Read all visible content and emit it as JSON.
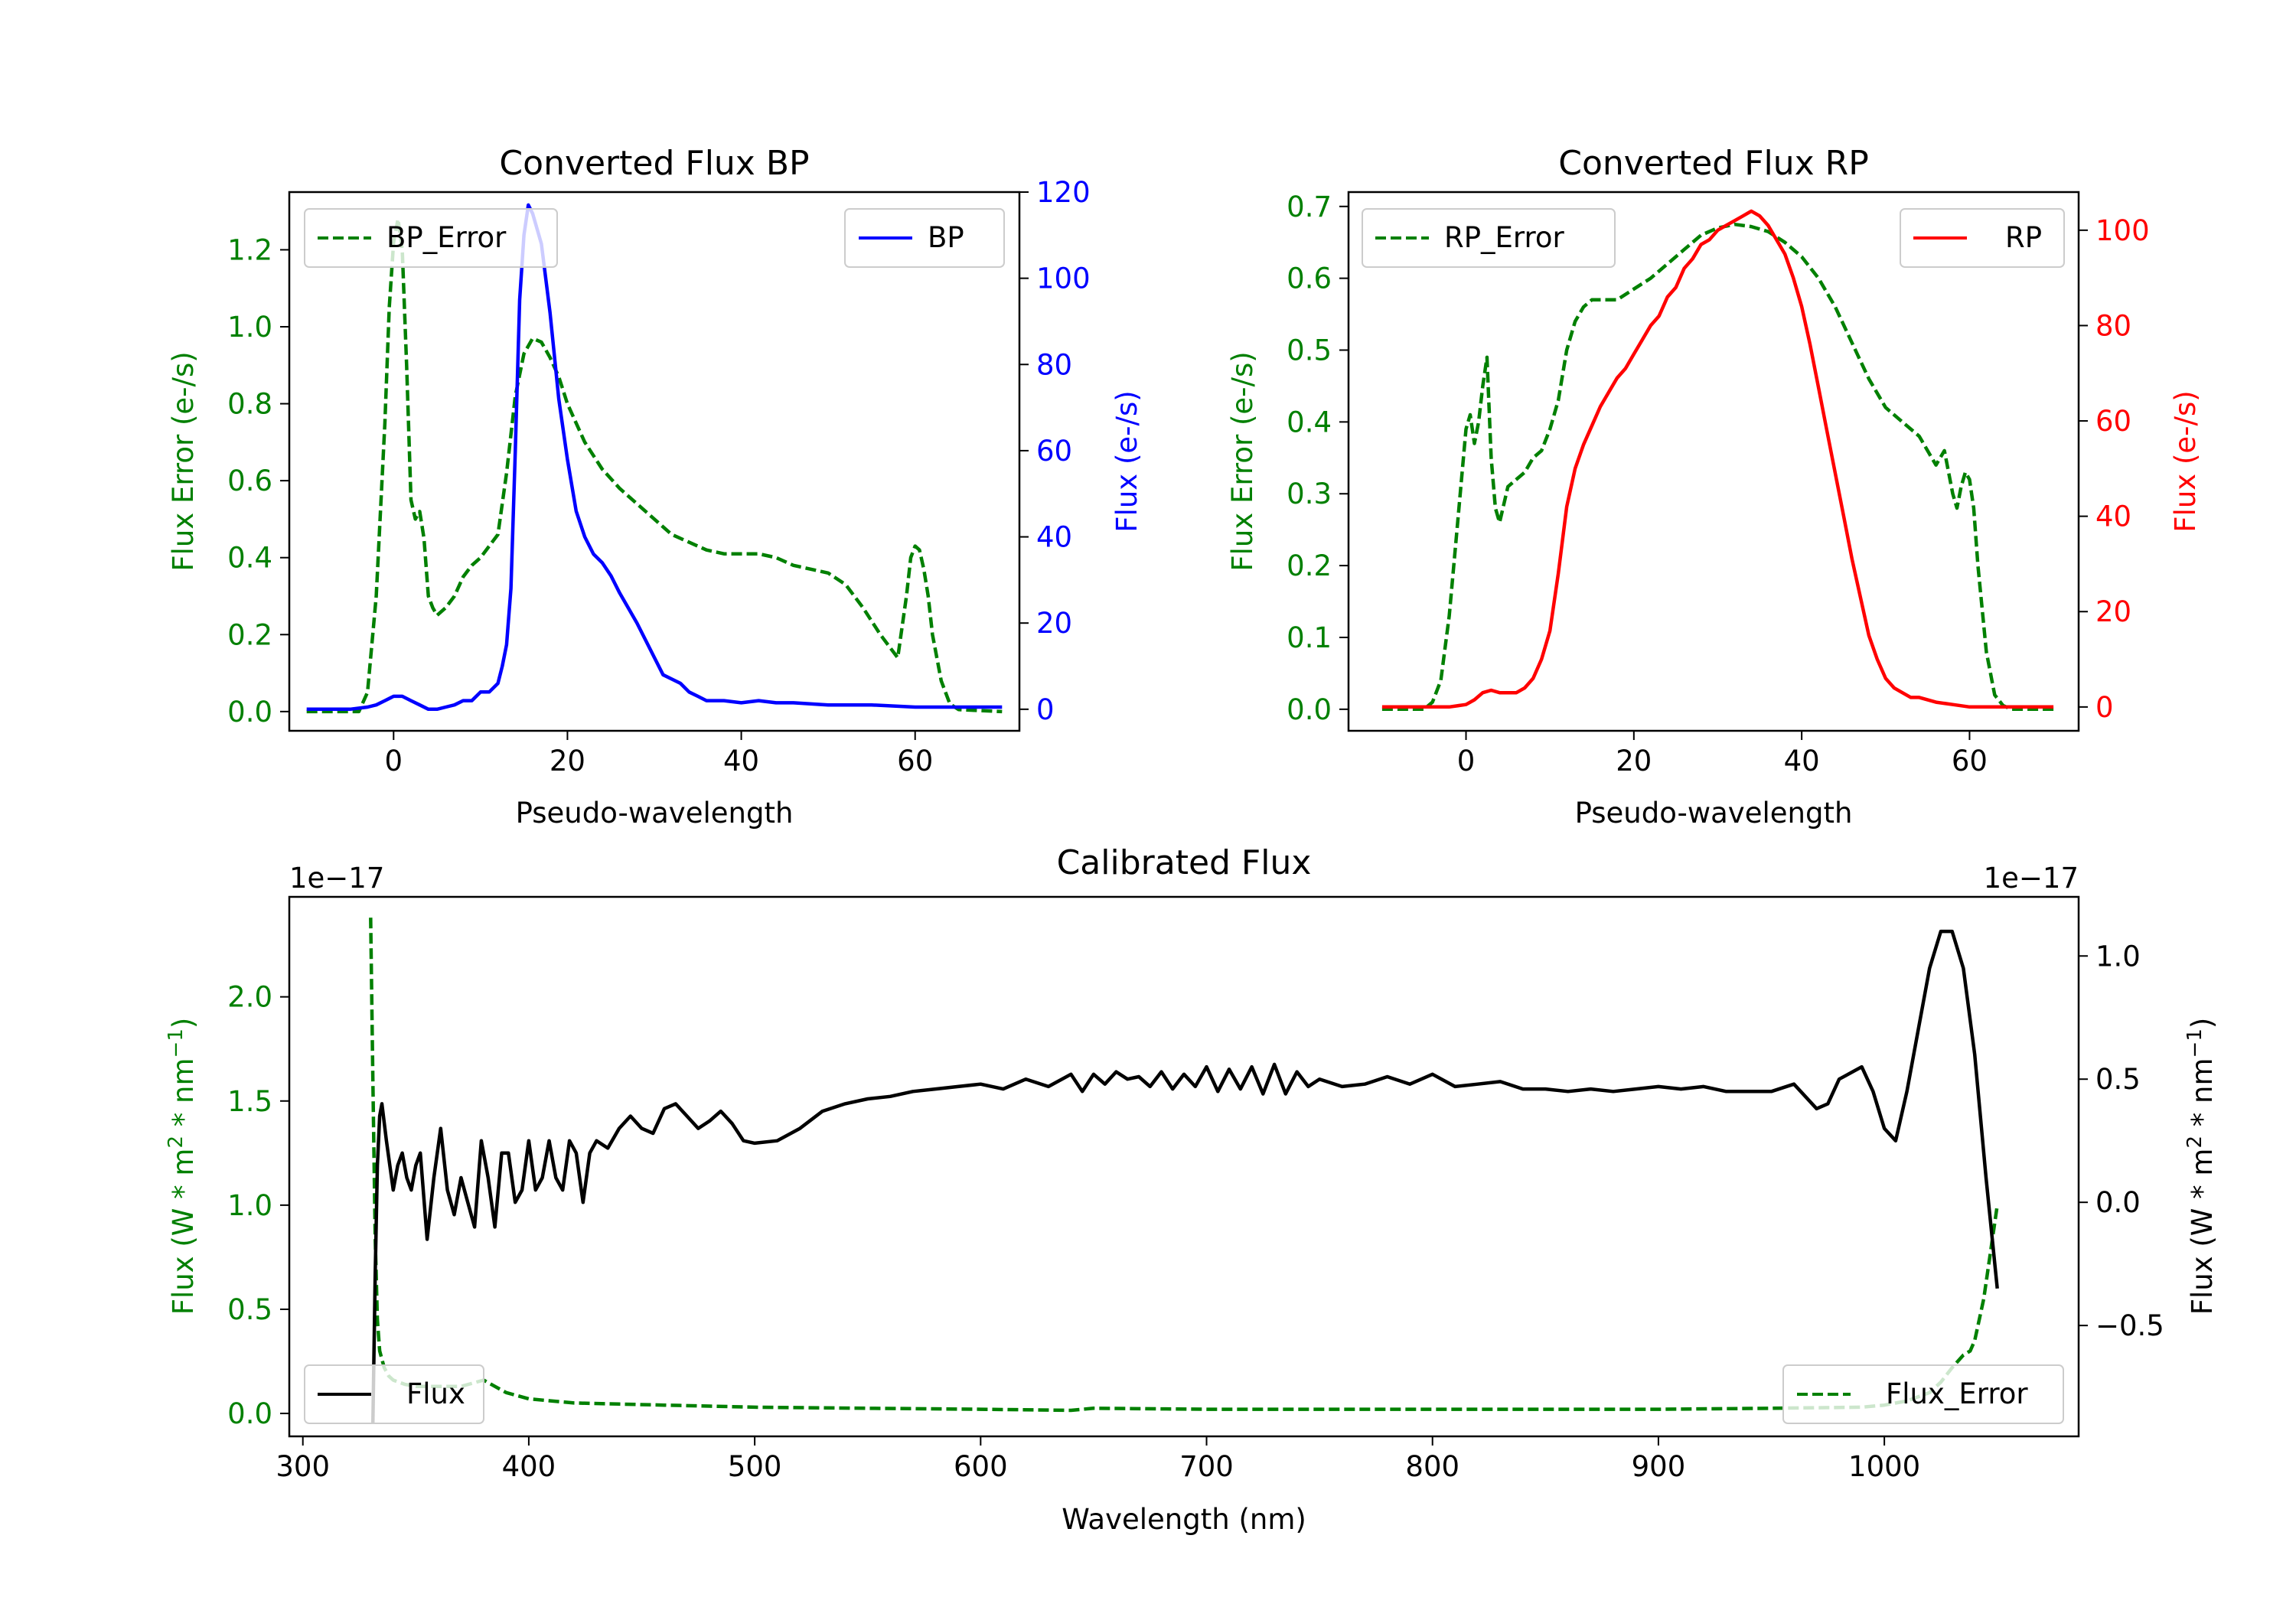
{
  "chart_data": [
    {
      "id": "bp",
      "type": "line",
      "title": "Converted Flux BP",
      "xlabel": "Pseudo-wavelength",
      "ylabel_left": "Flux Error (e-/s)",
      "ylabel_right": "Flux (e-/s)",
      "xlim": [
        -12,
        72
      ],
      "ylim_left": [
        -0.05,
        1.35
      ],
      "ylim_right": [
        -5,
        120
      ],
      "xticks": [
        0,
        20,
        40,
        60
      ],
      "xtick_labels": [
        "0",
        "20",
        "40",
        "60"
      ],
      "yticks_left": [
        0,
        0.2,
        0.4,
        0.6,
        0.8,
        1.0,
        1.2
      ],
      "ytick_labels_left": [
        "0.0",
        "0.2",
        "0.4",
        "0.6",
        "0.8",
        "1.0",
        "1.2"
      ],
      "yticks_right": [
        0,
        20,
        40,
        60,
        80,
        100,
        120
      ],
      "ytick_labels_right": [
        "0",
        "20",
        "40",
        "60",
        "80",
        "100",
        "120"
      ],
      "legend_left": "BP_Error",
      "legend_right": "BP",
      "colors": {
        "left": "#008000",
        "right": "#0000ff"
      },
      "series": [
        {
          "name": "BP_Error",
          "axis": "left",
          "style": "dashed",
          "color": "#008000",
          "x": [
            -10,
            -4,
            -3,
            -2,
            -1,
            -0.5,
            0,
            0.5,
            1,
            1.5,
            2,
            2.5,
            3,
            3.5,
            4,
            4.5,
            5,
            6,
            7,
            8,
            9,
            10,
            11,
            12,
            13,
            14,
            15,
            16,
            17,
            18,
            19,
            20,
            22,
            24,
            26,
            28,
            30,
            32,
            34,
            36,
            38,
            40,
            42,
            44,
            46,
            48,
            50,
            52,
            54,
            56,
            57,
            58,
            59,
            59.5,
            60,
            60.5,
            61,
            61.5,
            62,
            63,
            64,
            65,
            70
          ],
          "values": [
            0,
            0,
            0.05,
            0.3,
            0.75,
            1.05,
            1.22,
            1.28,
            1.2,
            0.9,
            0.55,
            0.5,
            0.52,
            0.45,
            0.3,
            0.27,
            0.25,
            0.27,
            0.3,
            0.35,
            0.38,
            0.4,
            0.43,
            0.46,
            0.62,
            0.82,
            0.93,
            0.97,
            0.96,
            0.92,
            0.87,
            0.8,
            0.7,
            0.63,
            0.58,
            0.54,
            0.5,
            0.46,
            0.44,
            0.42,
            0.41,
            0.41,
            0.41,
            0.4,
            0.38,
            0.37,
            0.36,
            0.33,
            0.27,
            0.2,
            0.17,
            0.14,
            0.3,
            0.4,
            0.43,
            0.42,
            0.37,
            0.3,
            0.2,
            0.08,
            0.02,
            0.005,
            0
          ]
        },
        {
          "name": "BP",
          "axis": "right",
          "style": "solid",
          "color": "#0000ff",
          "x": [
            -10,
            -5,
            -3,
            -2,
            -1,
            0,
            1,
            2,
            3,
            4,
            5,
            6,
            7,
            8,
            9,
            10,
            11,
            12,
            12.5,
            13,
            13.5,
            14,
            14.5,
            15,
            15.5,
            16,
            17,
            18,
            19,
            20,
            21,
            22,
            23,
            24,
            25,
            26,
            28,
            30,
            31,
            32,
            33,
            34,
            35,
            36,
            38,
            40,
            42,
            44,
            46,
            50,
            55,
            60,
            65,
            70
          ],
          "values": [
            0,
            0,
            0.5,
            1,
            2,
            3,
            3,
            2,
            1,
            0,
            0,
            0.5,
            1,
            2,
            2,
            4,
            4,
            6,
            10,
            15,
            28,
            60,
            95,
            110,
            117,
            115,
            108,
            92,
            72,
            58,
            46,
            40,
            36,
            34,
            31,
            27,
            20,
            12,
            8,
            7,
            6,
            4,
            3,
            2,
            2,
            1.5,
            2,
            1.5,
            1.5,
            1,
            1,
            0.5,
            0.5,
            0.5
          ]
        }
      ]
    },
    {
      "id": "rp",
      "type": "line",
      "title": "Converted Flux RP",
      "xlabel": "Pseudo-wavelength",
      "ylabel_left": "Flux Error (e-/s)",
      "ylabel_right": "Flux (e-/s)",
      "xlim": [
        -14,
        73
      ],
      "ylim_left": [
        -0.03,
        0.72
      ],
      "ylim_right": [
        -5,
        108
      ],
      "xticks": [
        0,
        20,
        40,
        60
      ],
      "xtick_labels": [
        "0",
        "20",
        "40",
        "60"
      ],
      "yticks_left": [
        0,
        0.1,
        0.2,
        0.3,
        0.4,
        0.5,
        0.6,
        0.7
      ],
      "ytick_labels_left": [
        "0.0",
        "0.1",
        "0.2",
        "0.3",
        "0.4",
        "0.5",
        "0.6",
        "0.7"
      ],
      "yticks_right": [
        0,
        20,
        40,
        60,
        80,
        100
      ],
      "ytick_labels_right": [
        "0",
        "20",
        "40",
        "60",
        "80",
        "100"
      ],
      "legend_left": "RP_Error",
      "legend_right": "RP",
      "colors": {
        "left": "#008000",
        "right": "#ff0000"
      },
      "series": [
        {
          "name": "RP_Error",
          "axis": "left",
          "style": "dashed",
          "color": "#008000",
          "x": [
            -10,
            -5,
            -4,
            -3,
            -2,
            -1,
            0,
            0.5,
            1,
            1.5,
            2,
            2.5,
            3,
            3.5,
            4,
            5,
            6,
            7,
            8,
            9,
            10,
            11,
            12,
            13,
            14,
            15,
            16,
            18,
            20,
            22,
            24,
            26,
            28,
            30,
            32,
            34,
            36,
            38,
            40,
            42,
            44,
            46,
            48,
            50,
            52,
            54,
            55,
            56,
            57,
            58,
            58.5,
            59,
            59.5,
            60,
            60.5,
            61,
            62,
            63,
            64,
            65,
            70
          ],
          "values": [
            0,
            0,
            0.01,
            0.04,
            0.13,
            0.26,
            0.39,
            0.41,
            0.37,
            0.4,
            0.45,
            0.49,
            0.35,
            0.28,
            0.26,
            0.31,
            0.32,
            0.33,
            0.35,
            0.36,
            0.39,
            0.43,
            0.5,
            0.54,
            0.56,
            0.57,
            0.57,
            0.57,
            0.585,
            0.6,
            0.62,
            0.64,
            0.66,
            0.67,
            0.675,
            0.672,
            0.665,
            0.65,
            0.63,
            0.6,
            0.56,
            0.51,
            0.46,
            0.42,
            0.4,
            0.38,
            0.36,
            0.34,
            0.36,
            0.3,
            0.28,
            0.31,
            0.33,
            0.32,
            0.28,
            0.2,
            0.08,
            0.02,
            0.005,
            0,
            0
          ]
        },
        {
          "name": "RP",
          "axis": "right",
          "style": "solid",
          "color": "#ff0000",
          "x": [
            -10,
            -2,
            0,
            1,
            2,
            3,
            4,
            5,
            6,
            7,
            8,
            9,
            10,
            11,
            12,
            13,
            14,
            15,
            16,
            17,
            18,
            19,
            20,
            21,
            22,
            23,
            24,
            25,
            26,
            27,
            28,
            29,
            30,
            31,
            32,
            33,
            34,
            35,
            36,
            37,
            38,
            39,
            40,
            41,
            42,
            43,
            44,
            45,
            46,
            47,
            48,
            49,
            50,
            51,
            52,
            53,
            54,
            56,
            58,
            60,
            65,
            70
          ],
          "values": [
            0,
            0,
            0.5,
            1.5,
            3,
            3.5,
            3,
            3,
            3,
            4,
            6,
            10,
            16,
            28,
            42,
            50,
            55,
            59,
            63,
            66,
            69,
            71,
            74,
            77,
            80,
            82,
            86,
            88,
            92,
            94,
            97,
            98,
            100,
            101,
            102,
            103,
            104,
            103,
            101,
            98,
            95,
            90,
            84,
            76,
            67,
            58,
            49,
            40,
            31,
            23,
            15,
            10,
            6,
            4,
            3,
            2,
            2,
            1,
            0.5,
            0,
            0,
            0
          ]
        }
      ]
    },
    {
      "id": "cal",
      "type": "line",
      "title": "Calibrated Flux",
      "xlabel": "Wavelength (nm)",
      "ylabel_left": "Flux (W * m$^2$ * nm$^{-1}$)",
      "ylabel_left_parts": [
        "Flux (W * m",
        "2",
        " * nm",
        "−1",
        ")"
      ],
      "ylabel_right_parts": [
        "Flux (W * m",
        "2",
        " * nm",
        "−1",
        ")"
      ],
      "offset_left": "1e−17",
      "offset_right": "1e−17",
      "xlim": [
        294,
        1086
      ],
      "ylim_left": [
        -0.11,
        2.48
      ],
      "ylim_right": [
        -0.95,
        1.24
      ],
      "xticks": [
        300,
        400,
        500,
        600,
        700,
        800,
        900,
        1000
      ],
      "xtick_labels": [
        "300",
        "400",
        "500",
        "600",
        "700",
        "800",
        "900",
        "1000"
      ],
      "yticks_left": [
        0,
        0.5,
        1.0,
        1.5,
        2.0
      ],
      "ytick_labels_left": [
        "0.0",
        "0.5",
        "1.0",
        "1.5",
        "2.0"
      ],
      "yticks_right": [
        -0.5,
        0,
        0.5,
        1.0
      ],
      "ytick_labels_right": [
        "−0.5",
        "0.0",
        "0.5",
        "1.0"
      ],
      "legend_left": "Flux",
      "legend_right": "Flux_Error",
      "colors": {
        "left": "#008000",
        "right": "#000000"
      },
      "series": [
        {
          "name": "Flux_Error",
          "axis": "left",
          "style": "dashed",
          "color": "#008000",
          "x": [
            330,
            331,
            332,
            333,
            334,
            336,
            338,
            340,
            345,
            350,
            360,
            370,
            380,
            385,
            390,
            400,
            420,
            440,
            460,
            480,
            500,
            550,
            600,
            640,
            650,
            700,
            750,
            800,
            850,
            900,
            950,
            990,
            1000,
            1010,
            1015,
            1020,
            1025,
            1030,
            1035,
            1038,
            1040,
            1042,
            1044,
            1046,
            1048,
            1050
          ],
          "values": [
            2.38,
            1.6,
            0.85,
            0.45,
            0.3,
            0.22,
            0.18,
            0.16,
            0.14,
            0.13,
            0.13,
            0.13,
            0.16,
            0.13,
            0.1,
            0.07,
            0.05,
            0.045,
            0.04,
            0.035,
            0.03,
            0.025,
            0.02,
            0.015,
            0.025,
            0.02,
            0.02,
            0.02,
            0.02,
            0.02,
            0.025,
            0.03,
            0.04,
            0.06,
            0.08,
            0.1,
            0.15,
            0.22,
            0.28,
            0.3,
            0.35,
            0.45,
            0.55,
            0.7,
            0.85,
            1.0
          ]
        },
        {
          "name": "Flux",
          "axis": "right",
          "style": "solid",
          "color": "#000000",
          "x": [
            331,
            332,
            333,
            334,
            335,
            337,
            340,
            342,
            344,
            346,
            348,
            350,
            352,
            355,
            358,
            361,
            364,
            367,
            370,
            373,
            376,
            379,
            382,
            385,
            388,
            391,
            394,
            397,
            400,
            403,
            406,
            409,
            412,
            415,
            418,
            421,
            424,
            427,
            430,
            435,
            440,
            445,
            450,
            455,
            460,
            465,
            470,
            475,
            480,
            485,
            490,
            495,
            500,
            510,
            520,
            530,
            540,
            550,
            560,
            570,
            580,
            590,
            600,
            610,
            620,
            630,
            640,
            645,
            650,
            655,
            660,
            665,
            670,
            675,
            680,
            685,
            690,
            695,
            700,
            705,
            710,
            715,
            720,
            725,
            730,
            735,
            740,
            745,
            750,
            760,
            770,
            780,
            790,
            800,
            810,
            820,
            830,
            840,
            850,
            860,
            870,
            880,
            890,
            900,
            910,
            920,
            930,
            940,
            950,
            960,
            970,
            975,
            980,
            990,
            995,
            1000,
            1005,
            1010,
            1015,
            1020,
            1025,
            1030,
            1035,
            1040,
            1045,
            1050
          ],
          "values": [
            -0.9,
            -0.3,
            0.15,
            0.35,
            0.4,
            0.25,
            0.05,
            0.15,
            0.2,
            0.1,
            0.05,
            0.15,
            0.2,
            -0.15,
            0.1,
            0.3,
            0.05,
            -0.05,
            0.1,
            0,
            -0.1,
            0.25,
            0.1,
            -0.1,
            0.2,
            0.2,
            0,
            0.05,
            0.25,
            0.05,
            0.1,
            0.25,
            0.1,
            0.05,
            0.25,
            0.2,
            0,
            0.2,
            0.25,
            0.22,
            0.3,
            0.35,
            0.3,
            0.28,
            0.38,
            0.4,
            0.35,
            0.3,
            0.33,
            0.37,
            0.32,
            0.25,
            0.24,
            0.25,
            0.3,
            0.37,
            0.4,
            0.42,
            0.43,
            0.45,
            0.46,
            0.47,
            0.48,
            0.46,
            0.5,
            0.47,
            0.52,
            0.45,
            0.52,
            0.48,
            0.53,
            0.5,
            0.51,
            0.47,
            0.53,
            0.46,
            0.52,
            0.47,
            0.55,
            0.45,
            0.54,
            0.46,
            0.55,
            0.44,
            0.56,
            0.44,
            0.53,
            0.47,
            0.5,
            0.47,
            0.48,
            0.51,
            0.48,
            0.52,
            0.47,
            0.48,
            0.49,
            0.46,
            0.46,
            0.45,
            0.46,
            0.45,
            0.46,
            0.47,
            0.46,
            0.47,
            0.45,
            0.45,
            0.45,
            0.48,
            0.38,
            0.4,
            0.5,
            0.55,
            0.45,
            0.3,
            0.25,
            0.45,
            0.7,
            0.95,
            1.1,
            1.1,
            0.95,
            0.6,
            0.1,
            -0.35
          ]
        }
      ]
    }
  ]
}
